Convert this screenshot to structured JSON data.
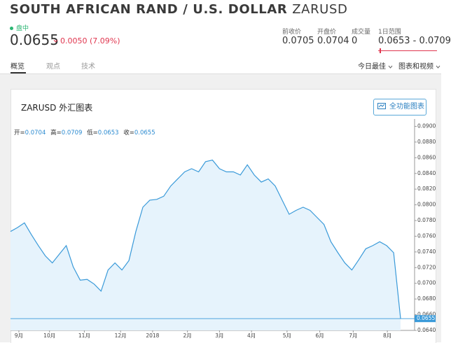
{
  "header": {
    "title": "SOUTH AFRICAN RAND / U.S. DOLLAR",
    "symbol": "ZARUSD",
    "status": "盘中",
    "price": "0.0655",
    "change": "0.0050 (7.09%)",
    "stats": [
      {
        "label": "前收价",
        "value": "0.0705"
      },
      {
        "label": "开盘价",
        "value": "0.0704"
      },
      {
        "label": "成交量",
        "value": "0"
      },
      {
        "label": "1日范围",
        "value": "0.0653 - 0.0709"
      }
    ]
  },
  "tabs": [
    "概览",
    "观点",
    "技术"
  ],
  "menus": [
    "今日最佳",
    "图表和视频"
  ],
  "card": {
    "title": "ZARUSD 外汇图表",
    "button": "全功能图表",
    "ohlc": [
      {
        "label": "开=",
        "value": "0.0704"
      },
      {
        "label": "高=",
        "value": "0.0709"
      },
      {
        "label": "低=",
        "value": "0.0653"
      },
      {
        "label": "收=",
        "value": "0.0655"
      }
    ]
  },
  "chart_data": {
    "type": "line",
    "color": "#3a9ad9",
    "values": [
      0.0766,
      0.0771,
      0.0777,
      0.0762,
      0.0748,
      0.0735,
      0.0726,
      0.0737,
      0.0748,
      0.0721,
      0.0704,
      0.0705,
      0.0699,
      0.069,
      0.0717,
      0.0726,
      0.0717,
      0.0729,
      0.0766,
      0.0797,
      0.0806,
      0.0807,
      0.0811,
      0.0824,
      0.0833,
      0.0842,
      0.0846,
      0.0842,
      0.0855,
      0.0857,
      0.0846,
      0.0842,
      0.0842,
      0.0838,
      0.0851,
      0.0838,
      0.0829,
      0.0833,
      0.0824,
      0.0806,
      0.0788,
      0.0793,
      0.0797,
      0.0793,
      0.0784,
      0.0775,
      0.0753,
      0.0739,
      0.0726,
      0.0717,
      0.073,
      0.0744,
      0.0748,
      0.0753,
      0.0748,
      0.0739,
      0.0655
    ],
    "xlim": [
      0,
      56
    ],
    "xticks": [
      {
        "value": 1.2,
        "label": "9月"
      },
      {
        "value": 5.6,
        "label": "10月"
      },
      {
        "value": 10.6,
        "label": "11月"
      },
      {
        "value": 15.8,
        "label": "12月"
      },
      {
        "value": 20.4,
        "label": "2018"
      },
      {
        "value": 25.4,
        "label": "2月"
      },
      {
        "value": 30,
        "label": "3月"
      },
      {
        "value": 34.6,
        "label": "4月"
      },
      {
        "value": 39.7,
        "label": "5月"
      },
      {
        "value": 44.4,
        "label": "6月"
      },
      {
        "value": 49.2,
        "label": "7月"
      },
      {
        "value": 54.1,
        "label": "8月"
      }
    ],
    "ylim": [
      0.064,
      0.0904
    ],
    "yticks": [
      {
        "value": 0.064,
        "label": "0.0640"
      },
      {
        "value": 0.066,
        "label": "0.0660"
      },
      {
        "value": 0.068,
        "label": "0.0680"
      },
      {
        "value": 0.07,
        "label": "0.0700"
      },
      {
        "value": 0.072,
        "label": "0.0720"
      },
      {
        "value": 0.074,
        "label": "0.0740"
      },
      {
        "value": 0.076,
        "label": "0.0760"
      },
      {
        "value": 0.078,
        "label": "0.0780"
      },
      {
        "value": 0.08,
        "label": "0.0800"
      },
      {
        "value": 0.082,
        "label": "0.0820"
      },
      {
        "value": 0.084,
        "label": "0.0840"
      },
      {
        "value": 0.086,
        "label": "0.0860"
      },
      {
        "value": 0.088,
        "label": "0.0880"
      },
      {
        "value": 0.09,
        "label": "0.0900"
      }
    ]
  }
}
